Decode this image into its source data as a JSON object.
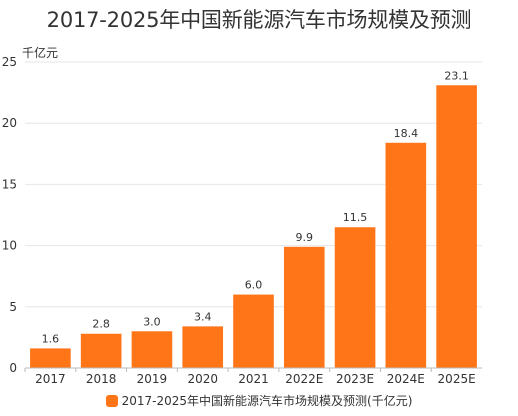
{
  "chart_data": {
    "type": "bar",
    "title": "2017-2025年中国新能源汽车市场规模及预测",
    "unit_label": "千亿元",
    "categories": [
      "2017",
      "2018",
      "2019",
      "2020",
      "2021",
      "2022E",
      "2023E",
      "2024E",
      "2025E"
    ],
    "series": [
      {
        "name": "2017-2025年中国新能源汽车市场规模及预测(千亿元)",
        "values": [
          1.6,
          2.8,
          3.0,
          3.4,
          6.0,
          9.9,
          11.5,
          18.4,
          23.1
        ],
        "value_labels": [
          "1.6",
          "2.8",
          "3.0",
          "3.4",
          "6.0",
          "9.9",
          "11.5",
          "18.4",
          "23.1"
        ]
      }
    ],
    "ylim": [
      0,
      25
    ],
    "yticks": [
      0,
      5,
      10,
      15,
      20,
      25
    ],
    "grid": true,
    "legend_position": "bottom",
    "bar_color": "#FF7518"
  }
}
